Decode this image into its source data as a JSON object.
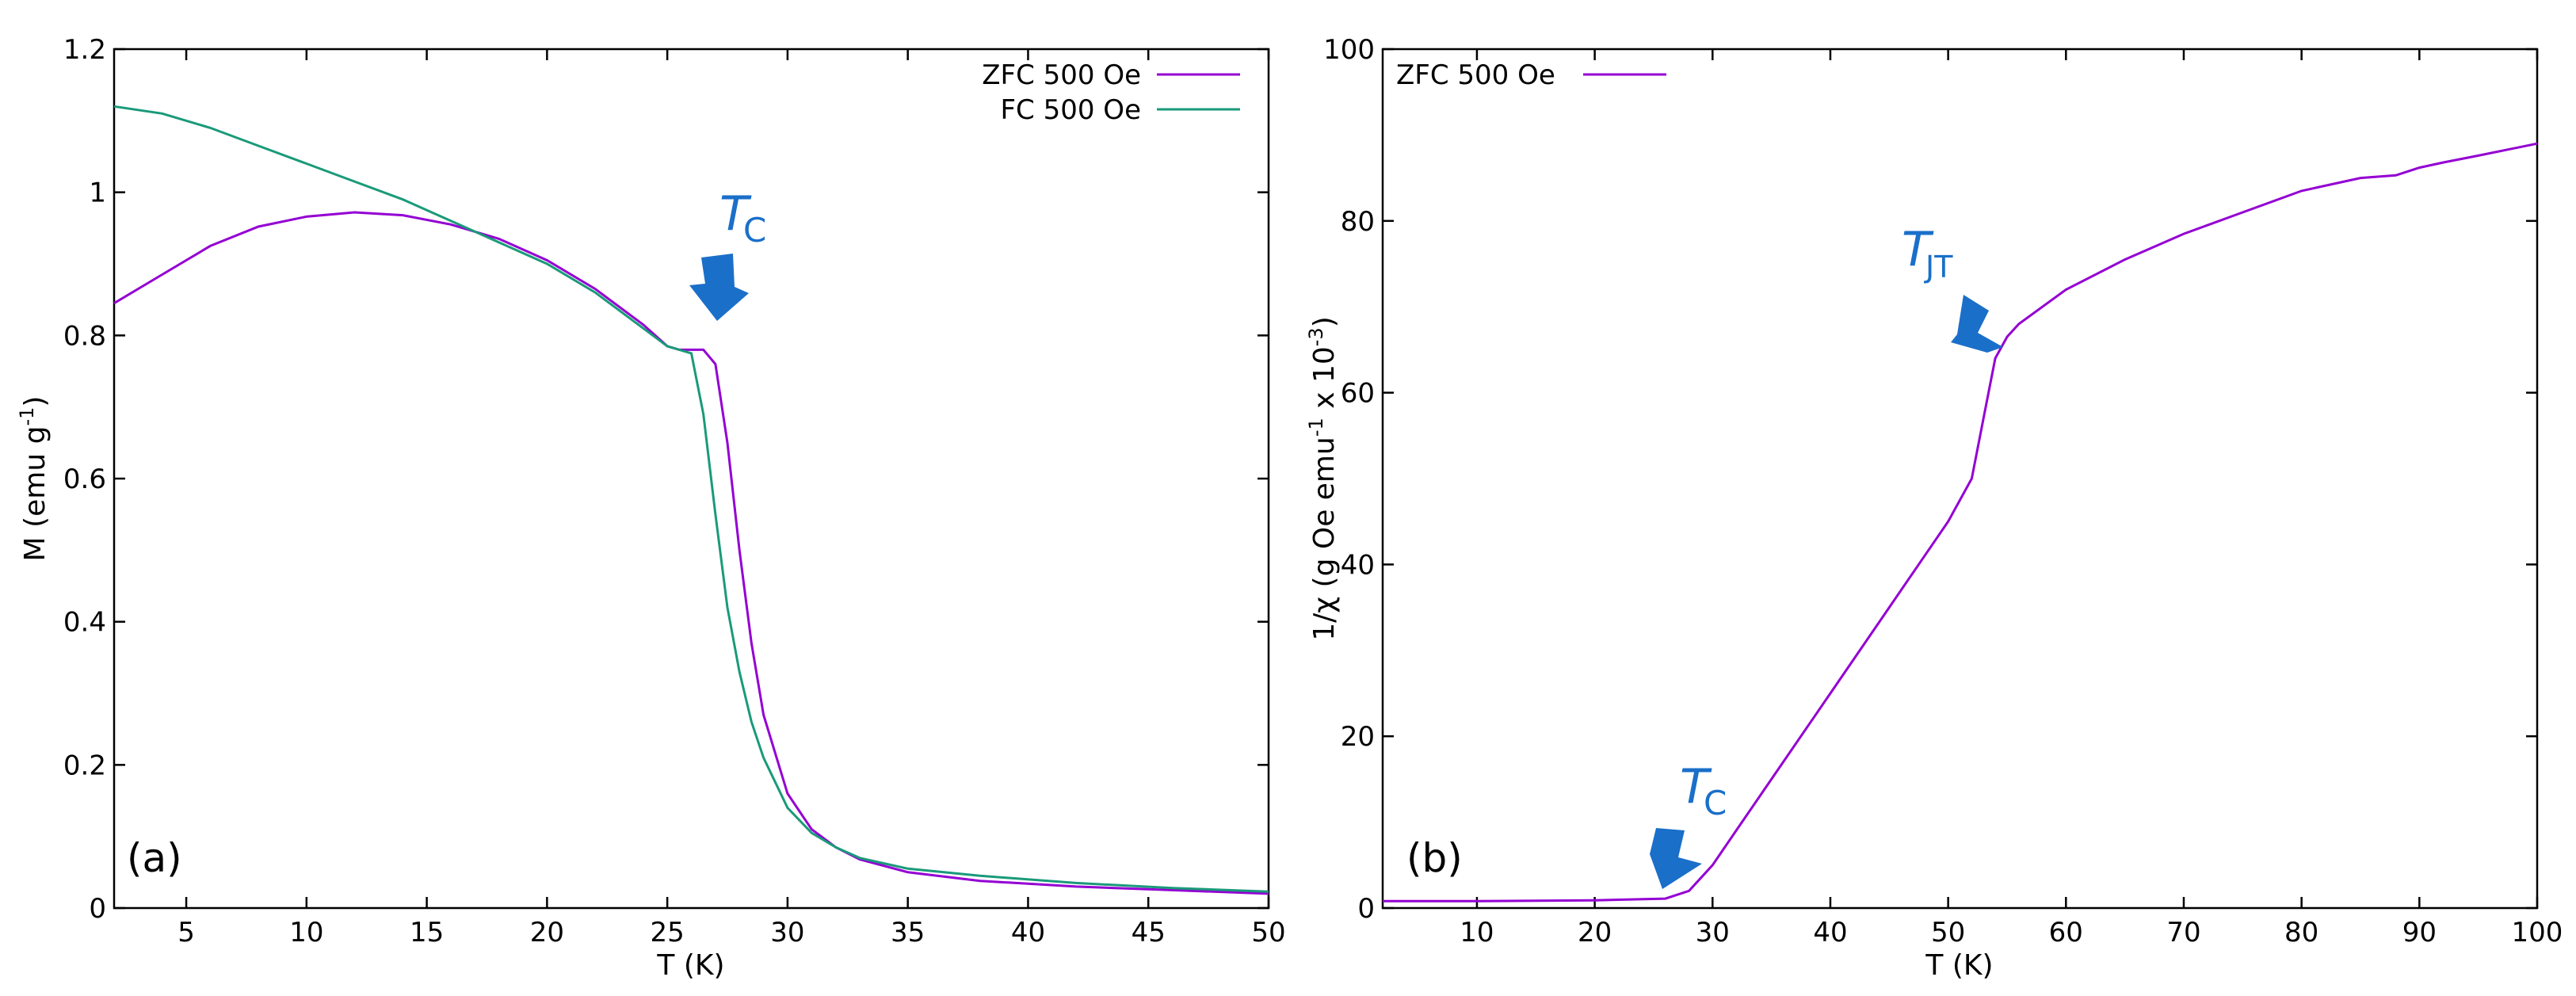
{
  "chart_data": [
    {
      "type": "line",
      "panel_label": "(a)",
      "xlabel": "T (K)",
      "ylabel_main": "M (emu g",
      "ylabel_sup": "-1",
      "ylabel_end": ")",
      "xlim": [
        2,
        50
      ],
      "ylim": [
        0,
        1.2
      ],
      "xticks": [
        5,
        10,
        15,
        20,
        25,
        30,
        35,
        40,
        45,
        50
      ],
      "yticks": [
        0,
        0.2,
        0.4,
        0.6,
        0.8,
        1,
        1.2
      ],
      "xtick_labels": [
        "5",
        "10",
        "15",
        "20",
        "25",
        "30",
        "35",
        "40",
        "45",
        "50"
      ],
      "ytick_labels": [
        "0",
        "0.2",
        "0.4",
        "0.6",
        "0.8",
        "1",
        "1.2"
      ],
      "legend_position": "top-right",
      "series": [
        {
          "name": "ZFC 500 Oe",
          "color": "#9400d3",
          "x": [
            2,
            4,
            6,
            8,
            10,
            12,
            14,
            16,
            18,
            20,
            22,
            24,
            25,
            25.5,
            26,
            26.5,
            27,
            27.5,
            28,
            28.5,
            29,
            30,
            31,
            32,
            33,
            35,
            38,
            42,
            46,
            50
          ],
          "y": [
            0.845,
            0.885,
            0.925,
            0.952,
            0.966,
            0.972,
            0.968,
            0.955,
            0.935,
            0.905,
            0.865,
            0.815,
            0.785,
            0.78,
            0.78,
            0.78,
            0.76,
            0.65,
            0.5,
            0.37,
            0.27,
            0.16,
            0.11,
            0.085,
            0.068,
            0.05,
            0.038,
            0.03,
            0.025,
            0.02
          ]
        },
        {
          "name": "FC 500 Oe",
          "color": "#1a9a7a",
          "x": [
            2,
            4,
            6,
            8,
            10,
            12,
            14,
            16,
            18,
            20,
            22,
            24,
            25,
            25.5,
            26,
            26.5,
            27,
            27.5,
            28,
            28.5,
            29,
            30,
            31,
            32,
            33,
            35,
            38,
            42,
            46,
            50
          ],
          "y": [
            1.12,
            1.11,
            1.09,
            1.065,
            1.04,
            1.015,
            0.99,
            0.96,
            0.93,
            0.9,
            0.86,
            0.81,
            0.785,
            0.78,
            0.775,
            0.69,
            0.55,
            0.42,
            0.33,
            0.26,
            0.21,
            0.14,
            0.105,
            0.085,
            0.07,
            0.055,
            0.045,
            0.035,
            0.028,
            0.023
          ]
        }
      ],
      "annotations": [
        {
          "text": "T",
          "sub": "C",
          "x": 26.7,
          "y": 0.8
        }
      ]
    },
    {
      "type": "line",
      "panel_label": "(b)",
      "xlabel": "T (K)",
      "ylabel_main": "1/χ (g Oe emu",
      "ylabel_sup1": "-1",
      "ylabel_mid": " x 10",
      "ylabel_sup2": "-3",
      "ylabel_end": ")",
      "xlim": [
        2,
        100
      ],
      "ylim": [
        0,
        100
      ],
      "xticks": [
        10,
        20,
        30,
        40,
        50,
        60,
        70,
        80,
        90,
        100
      ],
      "yticks": [
        0,
        20,
        40,
        60,
        80,
        100
      ],
      "xtick_labels": [
        "10",
        "20",
        "30",
        "40",
        "50",
        "60",
        "70",
        "80",
        "90",
        "100"
      ],
      "ytick_labels": [
        "0",
        "20",
        "40",
        "60",
        "80",
        "100"
      ],
      "legend_position": "top-left",
      "series": [
        {
          "name": "ZFC 500 Oe",
          "color": "#9400d3",
          "x": [
            2,
            10,
            20,
            26,
            28,
            30,
            32,
            35,
            40,
            45,
            50,
            52,
            53,
            54,
            55,
            56,
            60,
            65,
            70,
            75,
            80,
            85,
            88,
            90,
            92,
            95,
            100
          ],
          "y": [
            0.8,
            0.8,
            0.9,
            1.1,
            2,
            5,
            9,
            15,
            25,
            35,
            45,
            50,
            57,
            64,
            66.5,
            68,
            72,
            75.5,
            78.5,
            81,
            83.5,
            85,
            85.3,
            86.2,
            86.8,
            87.6,
            89
          ]
        }
      ],
      "annotations": [
        {
          "text": "T",
          "sub": "JT",
          "x": 55,
          "y": 66
        },
        {
          "text": "T",
          "sub": "C",
          "x": 28,
          "y": 2
        }
      ]
    }
  ]
}
